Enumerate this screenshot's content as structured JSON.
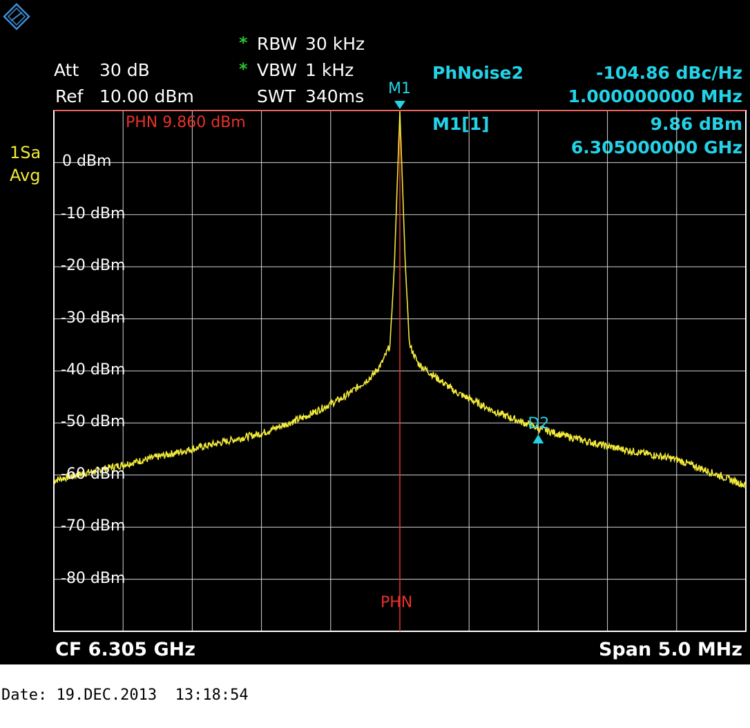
{
  "header": {
    "att_label": "Att",
    "att_value": "30 dB",
    "ref_label": "Ref",
    "ref_value": "10.00 dBm",
    "rbw_label": "RBW",
    "rbw_value": "30 kHz",
    "vbw_label": "VBW",
    "vbw_value": "1 kHz",
    "swt_label": "SWT",
    "swt_value": "340ms",
    "coupling_mark": "*"
  },
  "trace_info": {
    "detector": "1Sa",
    "mode": "Avg"
  },
  "markers": {
    "phnoise_label": "PhNoise2",
    "phnoise_value": "-104.86 dBc/Hz",
    "phnoise_offset": "1.000000000 MHz",
    "m1_label": "M1[1]",
    "m1_level": "9.86 dBm",
    "m1_freq": "6.305000000 GHz",
    "m1_tag": "M1",
    "d2_tag": "D2",
    "phn_ref_text": "PHN  9.860 dBm",
    "phn_line_label": "PHN"
  },
  "footer": {
    "cf": "CF 6.305 GHz",
    "span": "Span 5.0 MHz",
    "date": "Date: 19.DEC.2013  13:18:54"
  },
  "colors": {
    "trace": "#f2ea3a",
    "marker": "#22d3e8",
    "reference": "#e8322a",
    "grid": "#d8d8d8",
    "background": "#000000"
  },
  "chart_data": {
    "type": "line",
    "xlabel": "",
    "ylabel": "",
    "xlim": [
      6.3025,
      6.3075
    ],
    "ylim": [
      -90,
      10
    ],
    "x_unit": "GHz",
    "grid": true,
    "y_ticks": [
      "0 dBm",
      "-10 dBm",
      "-20 dBm",
      "-30 dBm",
      "-40 dBm",
      "-50 dBm",
      "-60 dBm",
      "-70 dBm",
      "-80 dBm"
    ],
    "y_tick_values": [
      0,
      -10,
      -20,
      -30,
      -40,
      -50,
      -60,
      -70,
      -80
    ],
    "reference_line_y": 9.86,
    "reference_line_x": 6.305,
    "series": [
      {
        "x": [
          6.3025,
          6.303,
          6.3035,
          6.304,
          6.3043,
          6.3046,
          6.3048,
          6.30487,
          6.30493,
          6.30496,
          6.30498,
          6.305,
          6.30502,
          6.30504,
          6.30507,
          6.30513,
          6.3052,
          6.3054,
          6.3057,
          6.306,
          6.3062,
          6.3065,
          6.307,
          6.3075
        ],
        "y": [
          -61,
          -58,
          -55,
          -52,
          -49,
          -45,
          -41,
          -38.5,
          -35,
          -20,
          -5,
          9.86,
          -5,
          -20,
          -35,
          -38.5,
          -40,
          -44,
          -48,
          -51,
          -52.5,
          -54.5,
          -57,
          -62
        ]
      }
    ],
    "markers": [
      {
        "name": "M1",
        "x": 6.305,
        "y": 9.86
      },
      {
        "name": "D2",
        "x": 6.306,
        "y": -53
      }
    ]
  }
}
